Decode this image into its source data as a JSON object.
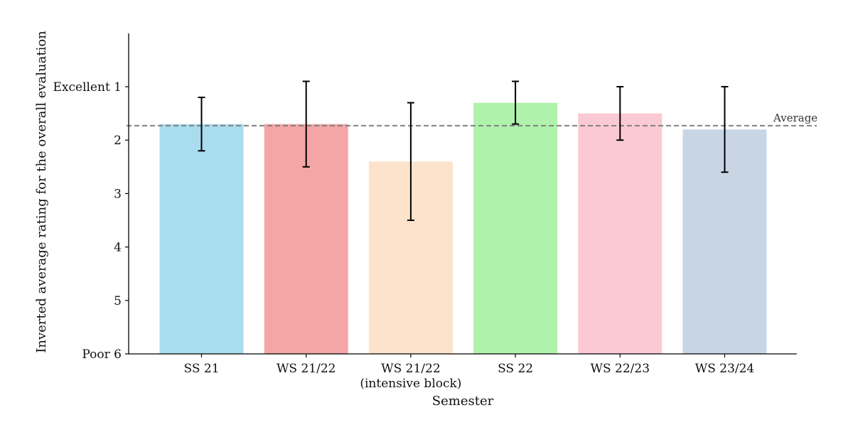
{
  "chart_data": {
    "type": "bar",
    "title": "",
    "xlabel": "Semester",
    "ylabel": "Inverted average rating for the overall evaluation",
    "y_inverted": true,
    "ylim": [
      6,
      0
    ],
    "yticks": [
      {
        "value": 1,
        "label": "Excellent 1"
      },
      {
        "value": 2,
        "label": "2"
      },
      {
        "value": 3,
        "label": "3"
      },
      {
        "value": 4,
        "label": "4"
      },
      {
        "value": 5,
        "label": "5"
      },
      {
        "value": 6,
        "label": "Poor 6"
      }
    ],
    "categories": [
      [
        "SS 21"
      ],
      [
        "WS 21/22"
      ],
      [
        "WS 21/22",
        "(intensive block)"
      ],
      [
        "SS 22"
      ],
      [
        "WS 22/23"
      ],
      [
        "WS 23/24"
      ]
    ],
    "values": [
      1.7,
      1.7,
      2.4,
      1.3,
      1.5,
      1.8
    ],
    "error_low": [
      1.2,
      0.9,
      1.3,
      0.9,
      1.0,
      1.0
    ],
    "error_high": [
      2.2,
      2.5,
      3.5,
      1.7,
      2.0,
      2.6
    ],
    "colors": [
      "#a8dcee",
      "#f4a5a5",
      "#fde3cb",
      "#b0f2ac",
      "#fbc9d3",
      "#c7d5e5"
    ],
    "average": {
      "value": 1.73,
      "label": "Average",
      "color": "#808080",
      "style": "dashed"
    },
    "grid": false,
    "legend": "none"
  }
}
